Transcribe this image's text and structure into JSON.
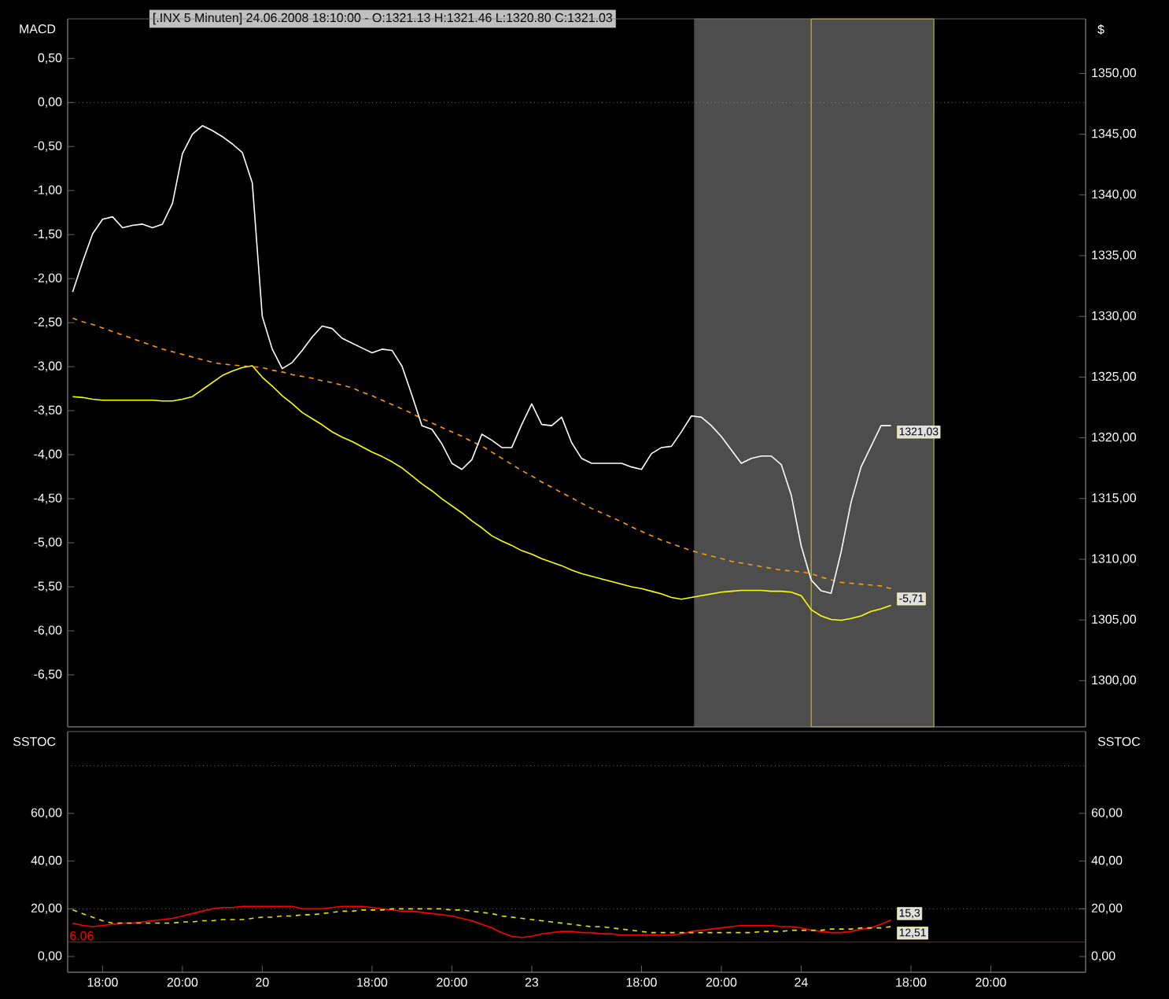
{
  "chart_data": [
    {
      "type": "line",
      "title": "[.INX  5 Minuten] 24.06.2008 18:10:00 - O:1321.13 H:1321.46 L:1320.80 C:1321.03",
      "ylabel": "MACD",
      "y2label": "$",
      "categories": [
        null,
        null,
        null,
        null,
        null,
        null,
        null,
        null,
        null,
        null,
        null,
        null,
        null,
        null,
        null,
        null,
        null,
        null,
        null,
        null,
        null,
        null,
        null,
        null,
        null,
        null,
        null,
        null,
        null,
        null,
        null,
        null,
        null,
        null,
        null,
        null,
        null,
        null,
        null,
        null,
        null,
        null,
        null,
        null,
        null,
        null,
        null,
        null,
        null,
        null,
        null,
        null,
        null,
        null,
        null,
        null,
        null,
        null,
        null,
        null,
        null,
        null,
        null,
        null,
        null,
        null,
        null,
        null,
        null,
        null,
        null,
        null,
        null,
        null,
        null,
        null,
        null,
        null,
        null,
        null,
        null,
        null,
        null,
        null,
        null,
        null,
        null,
        null,
        null,
        null,
        null,
        null,
        null,
        null,
        null,
        null,
        null,
        null,
        null,
        null,
        null,
        null
      ],
      "ylim": [
        -7.09,
        0.95
      ],
      "y2lim": [
        1296.2,
        1354.5
      ],
      "tick_labels": "y",
      "yticks": [
        {
          "value": 0.5,
          "label": "0,50"
        },
        {
          "value": 0,
          "label": "0,00"
        },
        {
          "value": -0.5,
          "label": "-0,50"
        },
        {
          "value": -1,
          "label": "-1,00"
        },
        {
          "value": -1.5,
          "label": "-1,50"
        },
        {
          "value": -2,
          "label": "-2,00"
        },
        {
          "value": -2.5,
          "label": "-2,50"
        },
        {
          "value": -3,
          "label": "-3,00"
        },
        {
          "value": -3.5,
          "label": "-3,50"
        },
        {
          "value": -4,
          "label": "-4,00"
        },
        {
          "value": -4.5,
          "label": "-4,50"
        },
        {
          "value": -5,
          "label": "-5,00"
        },
        {
          "value": -5.5,
          "label": "-5,50"
        },
        {
          "value": -6,
          "label": "-6,00"
        },
        {
          "value": -6.5,
          "label": "-6,50"
        }
      ],
      "y2ticks": [
        {
          "value": 1300,
          "label": "1300,00"
        },
        {
          "value": 1305,
          "label": "1305,00"
        },
        {
          "value": 1310,
          "label": "1310,00"
        },
        {
          "value": 1315,
          "label": "1315,00"
        },
        {
          "value": 1320,
          "label": "1320,00"
        },
        {
          "value": 1325,
          "label": "1325,00"
        },
        {
          "value": 1330,
          "label": "1330,00"
        },
        {
          "value": 1335,
          "label": "1335,00"
        },
        {
          "value": 1340,
          "label": "1340,00"
        },
        {
          "value": 1345,
          "label": "1345,00"
        },
        {
          "value": 1350,
          "label": "1350,00"
        }
      ],
      "series": [
        {
          "color": "#ffffff",
          "axis": "y2",
          "values": [
            1332.0,
            1334.5,
            1336.8,
            1338.0,
            1338.2,
            1337.3,
            1337.5,
            1337.6,
            1337.3,
            1337.6,
            1339.3,
            1343.4,
            1345.0,
            1345.7,
            1345.3,
            1344.8,
            1344.2,
            1343.5,
            1341.0,
            1330.0,
            1327.3,
            1325.7,
            1326.2,
            1327.2,
            1328.3,
            1329.2,
            1329.0,
            1328.2,
            1327.8,
            1327.4,
            1327.0,
            1327.3,
            1327.2,
            1325.9,
            1323.5,
            1321.0,
            1320.7,
            1319.5,
            1317.9,
            1317.4,
            1318.2,
            1320.3,
            1319.8,
            1319.2,
            1319.2,
            1321.1,
            1322.8,
            1321.1,
            1321.0,
            1321.7,
            1319.6,
            1318.3,
            1317.9,
            1317.9,
            1317.9,
            1317.9,
            1317.6,
            1317.4,
            1318.7,
            1319.2,
            1319.3,
            1320.5,
            1321.8,
            1321.7,
            1321.0,
            1320.1,
            1319.0,
            1317.9,
            1318.3,
            1318.5,
            1318.5,
            1317.8,
            1315.3,
            1311.1,
            1308.3,
            1307.4,
            1307.2,
            1310.6,
            1314.7,
            1317.6,
            1319.3,
            1321.0,
            1321.0,
            null,
            null,
            null,
            null,
            null,
            null,
            null,
            null,
            null,
            null,
            null,
            null,
            null,
            null,
            null,
            null,
            null,
            null,
            null
          ]
        },
        {
          "color": "#ffff00",
          "values": [
            -3.34,
            -3.35,
            -3.37,
            -3.38,
            -3.38,
            -3.38,
            -3.38,
            -3.38,
            -3.38,
            -3.39,
            -3.39,
            -3.37,
            -3.34,
            -3.26,
            -3.18,
            -3.1,
            -3.05,
            -3.01,
            -2.99,
            -3.12,
            -3.22,
            -3.33,
            -3.42,
            -3.52,
            -3.59,
            -3.66,
            -3.74,
            -3.8,
            -3.85,
            -3.91,
            -3.97,
            -4.02,
            -4.08,
            -4.15,
            -4.24,
            -4.33,
            -4.41,
            -4.5,
            -4.58,
            -4.66,
            -4.75,
            -4.83,
            -4.92,
            -4.98,
            -5.03,
            -5.09,
            -5.13,
            -5.18,
            -5.22,
            -5.26,
            -5.31,
            -5.35,
            -5.38,
            -5.41,
            -5.44,
            -5.47,
            -5.5,
            -5.52,
            -5.55,
            -5.58,
            -5.62,
            -5.64,
            -5.62,
            -5.6,
            -5.58,
            -5.56,
            -5.55,
            -5.54,
            -5.54,
            -5.54,
            -5.55,
            -5.55,
            -5.56,
            -5.6,
            -5.76,
            -5.83,
            -5.87,
            -5.88,
            -5.86,
            -5.83,
            -5.78,
            -5.75,
            -5.71,
            null,
            null,
            null,
            null,
            null,
            null,
            null,
            null,
            null,
            null,
            null,
            null,
            null,
            null,
            null,
            null,
            null,
            null,
            null
          ]
        },
        {
          "color": "#ff9900",
          "line_style": "dashed",
          "values": [
            -2.45,
            -2.49,
            -2.52,
            -2.56,
            -2.6,
            -2.64,
            -2.68,
            -2.72,
            -2.76,
            -2.8,
            -2.83,
            -2.86,
            -2.89,
            -2.92,
            -2.95,
            -2.97,
            -2.98,
            -2.99,
            -3.0,
            -3.01,
            -3.04,
            -3.06,
            -3.09,
            -3.11,
            -3.13,
            -3.16,
            -3.18,
            -3.21,
            -3.24,
            -3.29,
            -3.33,
            -3.38,
            -3.43,
            -3.48,
            -3.53,
            -3.59,
            -3.64,
            -3.69,
            -3.74,
            -3.79,
            -3.85,
            -3.9,
            -3.97,
            -4.04,
            -4.11,
            -4.18,
            -4.24,
            -4.31,
            -4.37,
            -4.43,
            -4.49,
            -4.55,
            -4.61,
            -4.66,
            -4.71,
            -4.76,
            -4.82,
            -4.87,
            -4.92,
            -4.97,
            -5.01,
            -5.05,
            -5.09,
            -5.12,
            -5.15,
            -5.18,
            -5.21,
            -5.23,
            -5.25,
            -5.27,
            -5.29,
            -5.31,
            -5.32,
            -5.33,
            -5.35,
            -5.39,
            -5.42,
            -5.45,
            -5.46,
            -5.47,
            -5.48,
            -5.49,
            -5.52,
            null,
            null,
            null,
            null,
            null,
            null,
            null,
            null,
            null,
            null,
            null,
            null,
            null,
            null,
            null,
            null,
            null,
            null,
            null
          ]
        }
      ],
      "ref_lines": [
        {
          "axis": "y",
          "value": 0,
          "color": "#aaaaaa",
          "line_style": "dotted"
        }
      ],
      "annotations": [
        "-5,71",
        "1321,03"
      ]
    },
    {
      "type": "line",
      "ylabel": "SSTOC",
      "y2label": "SSTOC",
      "ylim": [
        -6.6,
        94.3
      ],
      "y2lim": [
        -6.6,
        94.3
      ],
      "categories": [
        null,
        null,
        null,
        "18:00",
        null,
        null,
        null,
        null,
        null,
        null,
        null,
        "20:00",
        null,
        null,
        null,
        null,
        null,
        null,
        null,
        "20",
        null,
        null,
        null,
        null,
        null,
        null,
        null,
        null,
        null,
        null,
        "18:00",
        null,
        null,
        null,
        null,
        null,
        null,
        null,
        "20:00",
        null,
        null,
        null,
        null,
        null,
        null,
        null,
        "23",
        null,
        null,
        null,
        null,
        null,
        null,
        null,
        null,
        null,
        null,
        "18:00",
        null,
        null,
        null,
        null,
        null,
        null,
        null,
        "20:00",
        null,
        null,
        null,
        null,
        null,
        null,
        null,
        "24",
        null,
        null,
        null,
        null,
        null,
        null,
        null,
        null,
        null,
        null,
        "18:00",
        null,
        null,
        null,
        null,
        null,
        null,
        null,
        "20:00",
        null,
        null,
        null,
        null,
        null,
        null,
        null,
        null,
        null
      ],
      "yticks": [
        {
          "value": 0,
          "label": "0,00"
        },
        {
          "value": 20,
          "label": "20,00"
        },
        {
          "value": 40,
          "label": "40,00"
        },
        {
          "value": 60,
          "label": "60,00"
        }
      ],
      "y2ticks": [
        {
          "value": 0,
          "label": "0,00"
        },
        {
          "value": 20,
          "label": "20,00"
        },
        {
          "value": 40,
          "label": "40,00"
        },
        {
          "value": 60,
          "label": "60,00"
        }
      ],
      "series": [
        {
          "color": "#ff0000",
          "values": [
            14,
            13,
            12.5,
            13,
            13.5,
            14,
            14,
            14.5,
            15,
            15.5,
            16,
            17,
            18,
            19,
            20,
            20.5,
            20.5,
            21,
            21,
            21,
            21,
            21,
            21,
            20,
            20,
            20,
            20.5,
            21,
            21,
            21,
            20.5,
            20,
            19.5,
            19,
            19,
            18.5,
            18,
            17.5,
            17,
            16,
            15,
            13.5,
            12,
            10,
            8.5,
            8,
            8.5,
            9.5,
            10,
            10.5,
            10.5,
            10,
            10,
            9.5,
            9.5,
            9,
            9,
            9,
            9,
            9,
            9,
            9.5,
            10.5,
            11,
            11.5,
            12,
            12.5,
            13,
            13,
            13,
            13,
            12.5,
            12.5,
            12,
            11,
            10.5,
            10,
            10,
            10.5,
            11.5,
            12,
            13.5,
            15.3,
            null,
            null,
            null,
            null,
            null,
            null,
            null,
            null,
            null,
            null,
            null,
            null,
            null,
            null,
            null,
            null,
            null,
            null,
            null
          ]
        },
        {
          "color": "#e6e600",
          "line_style": "dashed",
          "values": [
            19.5,
            18,
            16.5,
            15,
            14,
            14,
            14,
            14,
            14,
            14,
            14,
            14.5,
            14.5,
            15,
            15,
            15.5,
            15.5,
            15.5,
            16,
            16.5,
            16.5,
            17,
            17,
            17.5,
            17.5,
            18,
            18.5,
            19,
            19,
            19.5,
            19.5,
            19.5,
            20,
            20,
            20,
            20,
            20,
            20,
            19.5,
            19.5,
            19,
            18.5,
            18,
            17,
            16.5,
            16,
            15.5,
            15,
            14.5,
            14,
            13.5,
            13,
            12.5,
            12.5,
            12,
            11.5,
            11,
            10.5,
            10,
            10,
            10,
            10,
            10,
            10,
            10,
            10,
            10,
            10,
            10,
            10.5,
            10.5,
            10.5,
            11,
            11,
            11,
            11,
            11.5,
            11.5,
            11.5,
            12,
            12,
            12,
            12.51,
            null,
            null,
            null,
            null,
            null,
            null,
            null,
            null,
            null,
            null,
            null,
            null,
            null,
            null,
            null,
            null,
            null,
            null,
            null
          ]
        }
      ],
      "ref_lines": [
        {
          "axis": "y",
          "value": 80,
          "color": "#aaaaaa",
          "line_style": "dotted"
        },
        {
          "axis": "y",
          "value": 20,
          "color": "#aaaaaa",
          "line_style": "dotted"
        },
        {
          "axis": "y",
          "value": 6.06,
          "label": "6.06",
          "color": "#ff0000"
        }
      ],
      "annotations": [
        "15,3",
        "12,51"
      ]
    }
  ]
}
